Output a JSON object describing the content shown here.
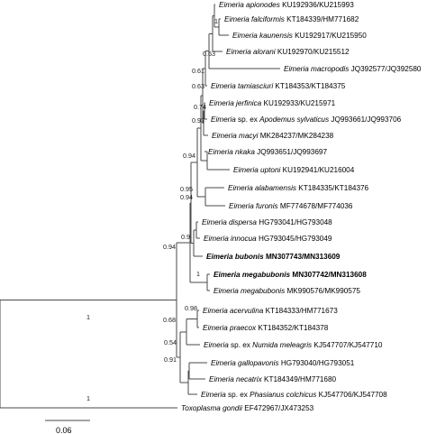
{
  "taxa": [
    {
      "id": "apionodes",
      "genus": "Eimeria apionodes",
      "acc": "KU192936/KU215993",
      "bold": false
    },
    {
      "id": "falciformis",
      "genus": "Eimeria falciformis",
      "acc": "KT184339/HM771682",
      "bold": false
    },
    {
      "id": "kaunensis",
      "genus": "Eimeria kaunensis",
      "acc": "KU192917/KU215950",
      "bold": false
    },
    {
      "id": "alorani",
      "genus": "Eimeria alorani",
      "acc": "KU192970/KU215512",
      "bold": false
    },
    {
      "id": "macropodis",
      "genus": "Eimeria macropodis",
      "acc": "JQ392577/JQ392580",
      "bold": false
    },
    {
      "id": "tamiasciuri",
      "genus": "Eimeria tamiasciuri",
      "acc": "KT184353/KT184375",
      "bold": false
    },
    {
      "id": "jerfinica",
      "genus": "Eimeria jerfinica",
      "acc": "KU192933/KU215971",
      "bold": false
    },
    {
      "id": "apodemus",
      "genus": "Eimeria",
      "mid": " sp. ex ",
      "host": "Apodemus sylvaticus",
      "acc": "JQ993661/JQ993706",
      "bold": false
    },
    {
      "id": "macyi",
      "genus": "Eimeria macyi",
      "acc": "MK284237/MK284238",
      "bold": false
    },
    {
      "id": "nkaka",
      "genus": "Eimeria nkaka",
      "acc": "JQ993651/JQ993697",
      "bold": false
    },
    {
      "id": "uptoni",
      "genus": "Eimeria uptoni",
      "acc": "KU192941/KU216004",
      "bold": false
    },
    {
      "id": "alabamensis",
      "genus": "Eimeria alabamensis",
      "acc": "KT184335/KT184376",
      "bold": false
    },
    {
      "id": "furonis",
      "genus": "Eimeria furonis",
      "acc": "MF774678/MF774036",
      "bold": false
    },
    {
      "id": "dispersa",
      "genus": "Eimeria dispersa",
      "acc": "HG793041/HG793048",
      "bold": false
    },
    {
      "id": "innocua",
      "genus": "Eimeria innocua",
      "acc": "HG793045/HG793049",
      "bold": false
    },
    {
      "id": "bubonis",
      "genus": "Eimeria bubonis",
      "acc": "MN307743/MN313609",
      "bold": true
    },
    {
      "id": "megabubonis1",
      "genus": "Eimeria megabubonis",
      "acc": "MN307742/MN313608",
      "bold": true
    },
    {
      "id": "megabubonis2",
      "genus": "Eimeria megabubonis",
      "acc": "MK990576/MK990575",
      "bold": false
    },
    {
      "id": "acervulina",
      "genus": "Eimeria acervulina",
      "acc": "KT184333/HM771673",
      "bold": false
    },
    {
      "id": "praecox",
      "genus": "Eimeria praecox",
      "acc": "KT184352/KT184378",
      "bold": false
    },
    {
      "id": "numida",
      "genus": "Eimeria",
      "mid": " sp. ex ",
      "host": "Numida meleagris",
      "acc": "KJ547707/KJ547710",
      "bold": false
    },
    {
      "id": "gallopavonis",
      "genus": "Eimeria gallopavonis",
      "acc": "HG793040/HG793051",
      "bold": false
    },
    {
      "id": "necatrix",
      "genus": "Eimeria necatrix",
      "acc": "KT184349/HM771680",
      "bold": false
    },
    {
      "id": "phasianus",
      "genus": "Eimeria",
      "mid": " sp. ex ",
      "host": "Phasianus colchicus",
      "acc": "KJ547706/KJ547708",
      "bold": false
    },
    {
      "id": "toxoplasma",
      "genus": "Toxoplasma gondii",
      "acc": "EF472967/JX473253",
      "bold": false
    }
  ],
  "supports": [
    {
      "id": "s_fal_kau",
      "value": "1"
    },
    {
      "id": "s_alorani",
      "value": "0.63"
    },
    {
      "id": "s_macropodis",
      "value": "0.61"
    },
    {
      "id": "s_tamiasciuri",
      "value": "0.63"
    },
    {
      "id": "s_jerf_apod",
      "value": "0.74"
    },
    {
      "id": "s_macyi",
      "value": "0.93"
    },
    {
      "id": "s_nkaka_clade",
      "value": "0.94"
    },
    {
      "id": "s_alab_furonis",
      "value": "0.95"
    },
    {
      "id": "s_rodent_clade",
      "value": "0.94"
    },
    {
      "id": "s_disp_inno",
      "value": "0.9"
    },
    {
      "id": "s_owl_clade",
      "value": "0.94"
    },
    {
      "id": "s_megabubonis",
      "value": "1"
    },
    {
      "id": "s_root_eimeria",
      "value": "1"
    },
    {
      "id": "s_acer_prae",
      "value": "0.98"
    },
    {
      "id": "s_galliform",
      "value": "0.68"
    },
    {
      "id": "s_galliform2",
      "value": "0.54"
    },
    {
      "id": "s_gallo_neca",
      "value": "0.91"
    },
    {
      "id": "s_toxoplasma",
      "value": "1"
    }
  ],
  "scale_bar": {
    "label": "0.06"
  }
}
